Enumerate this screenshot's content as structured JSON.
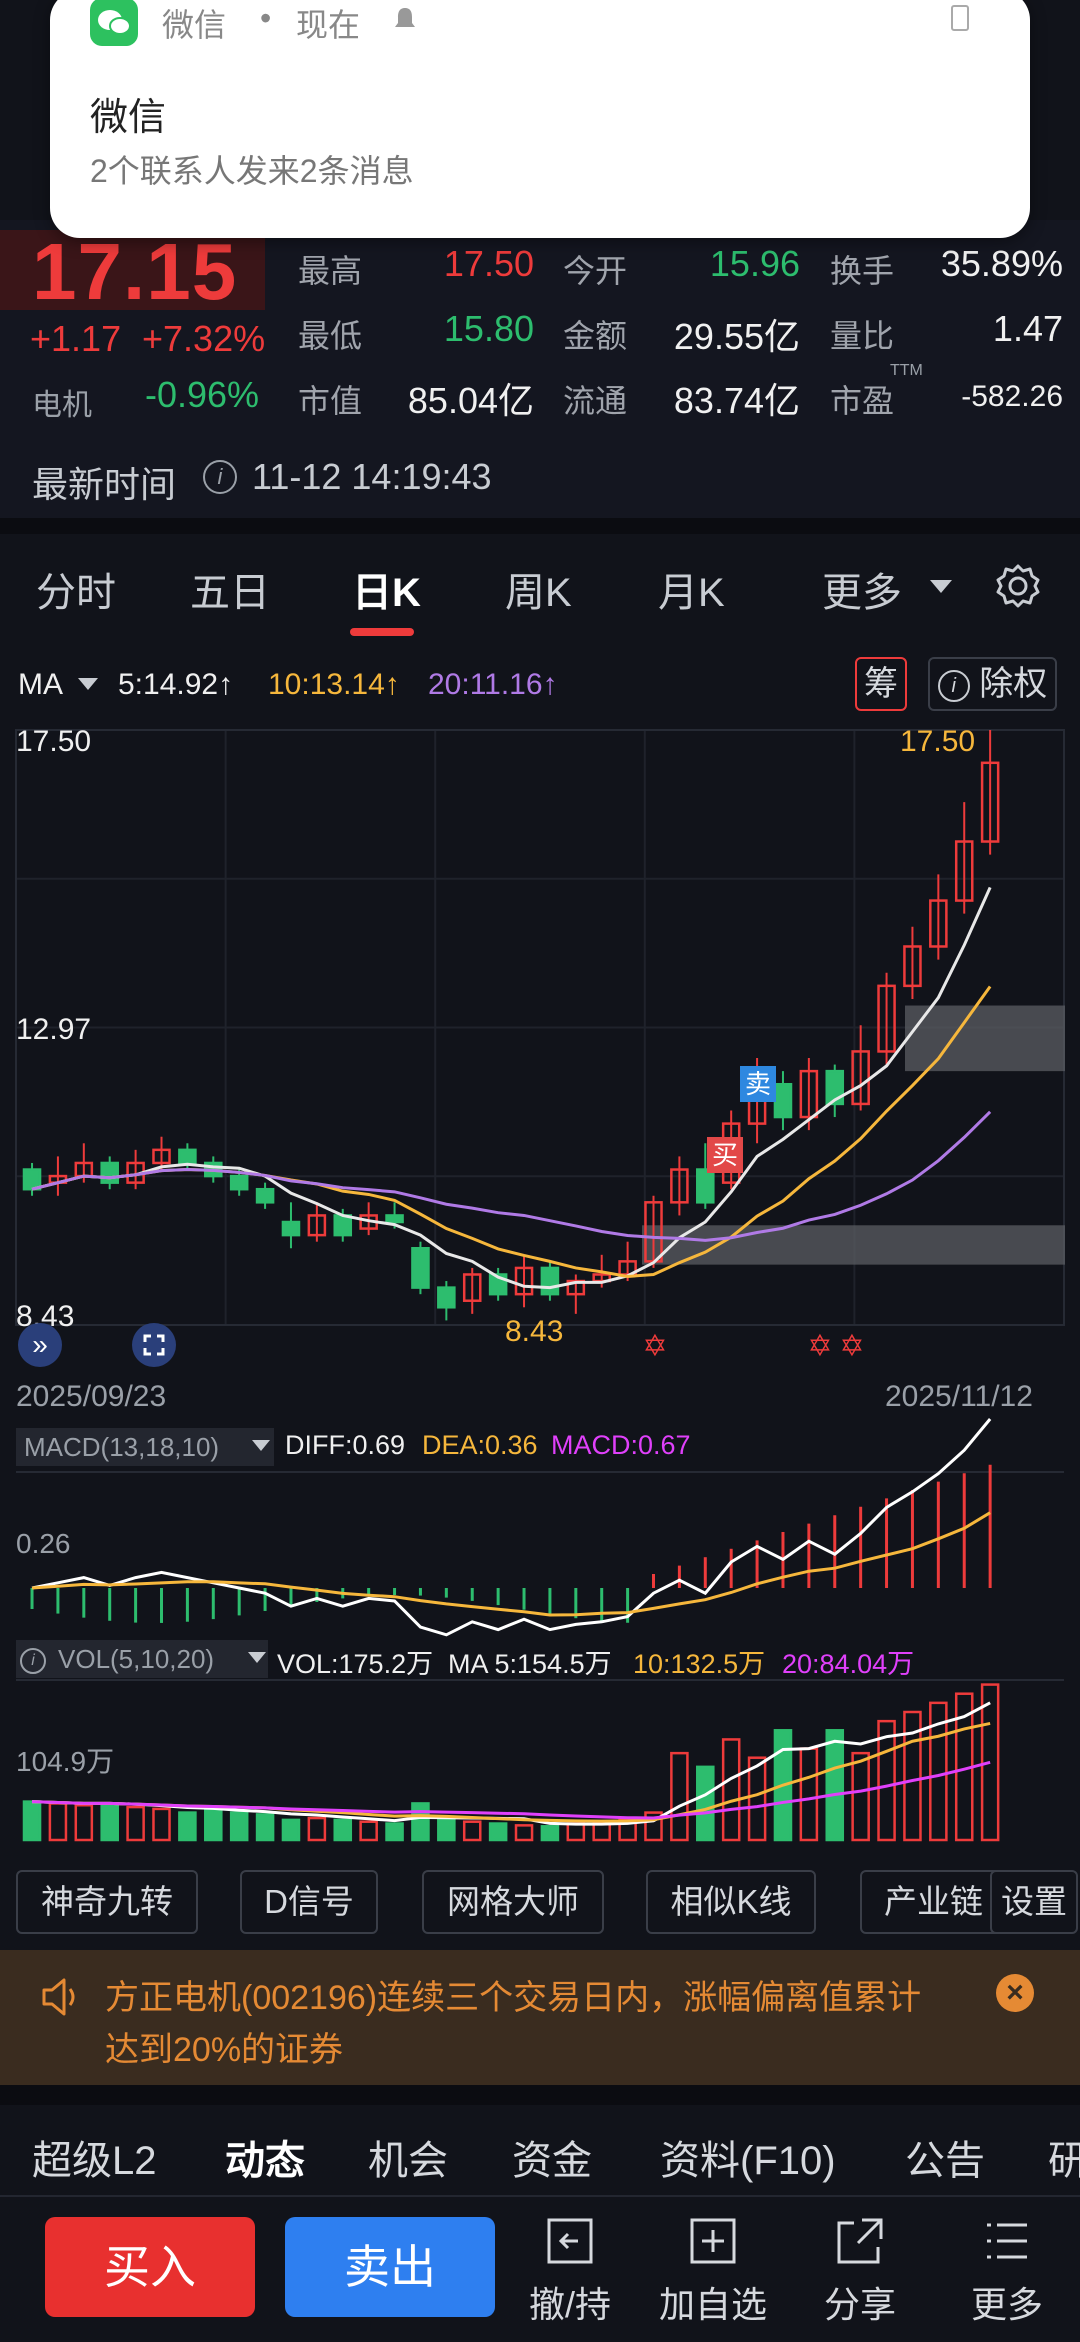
{
  "notification": {
    "app": "微信",
    "dot": "•",
    "time": "现在",
    "title": "微信",
    "body": "2个联系人发来2条消息"
  },
  "quote": {
    "price": "17.15",
    "change": "+1.17",
    "change_pct": "+7.32%",
    "sector_label": "电机",
    "sector_pct": "-0.96%",
    "high_label": "最高",
    "high": "17.50",
    "open_label": "今开",
    "open": "15.96",
    "turnover_label": "换手",
    "turnover": "35.89%",
    "low_label": "最低",
    "low": "15.80",
    "amount_label": "金额",
    "amount": "29.55亿",
    "volratio_label": "量比",
    "volratio": "1.47",
    "mcap_label": "市值",
    "mcap": "85.04亿",
    "float_label": "流通",
    "float": "83.74亿",
    "pe_label": "市盈",
    "pe_sup": "TTM",
    "pe": "-582.26",
    "time_label": "最新时间",
    "time_value": "11-12 14:19:43"
  },
  "tabs": [
    "分时",
    "五日",
    "日K",
    "周K",
    "月K",
    "更多"
  ],
  "ma": {
    "label": "MA",
    "ma5": "5:14.92↑",
    "ma10": "10:13.14↑",
    "ma20": "20:11.16↑",
    "chip_label": "筹",
    "adjust_label": "除权"
  },
  "chart_data": {
    "type": "candlestick",
    "y_ticks": [
      "17.50",
      "12.97",
      "8.43"
    ],
    "max_label": "17.50",
    "min_label": "8.43",
    "start_date": "2025/09/23",
    "end_date": "2025/11/12",
    "buy_marker": "买",
    "sell_marker": "卖",
    "candles": [
      [
        10.8,
        10.5,
        10.9,
        10.4
      ],
      [
        10.6,
        10.7,
        11.0,
        10.4
      ],
      [
        10.7,
        10.9,
        11.2,
        10.6
      ],
      [
        10.9,
        10.6,
        11.0,
        10.5
      ],
      [
        10.6,
        10.9,
        11.1,
        10.5
      ],
      [
        10.9,
        11.1,
        11.3,
        10.8
      ],
      [
        11.1,
        10.9,
        11.2,
        10.8
      ],
      [
        10.9,
        10.7,
        11.0,
        10.6
      ],
      [
        10.7,
        10.5,
        10.8,
        10.4
      ],
      [
        10.5,
        10.3,
        10.6,
        10.2
      ],
      [
        10.0,
        9.8,
        10.3,
        9.6
      ],
      [
        9.8,
        10.1,
        10.3,
        9.7
      ],
      [
        10.1,
        9.8,
        10.2,
        9.7
      ],
      [
        9.9,
        10.1,
        10.3,
        9.8
      ],
      [
        10.1,
        10.0,
        10.3,
        9.9
      ],
      [
        9.6,
        9.0,
        9.7,
        8.9
      ],
      [
        9.0,
        8.7,
        9.1,
        8.5
      ],
      [
        8.8,
        9.2,
        9.3,
        8.6
      ],
      [
        9.2,
        8.9,
        9.3,
        8.8
      ],
      [
        8.9,
        9.3,
        9.5,
        8.7
      ],
      [
        9.3,
        8.9,
        9.4,
        8.8
      ],
      [
        8.9,
        9.1,
        9.2,
        8.6
      ],
      [
        9.1,
        9.2,
        9.5,
        9.0
      ],
      [
        9.2,
        9.4,
        9.7,
        9.1
      ],
      [
        9.4,
        10.3,
        10.4,
        9.3
      ],
      [
        10.3,
        10.8,
        11.0,
        10.1
      ],
      [
        10.8,
        10.3,
        11.2,
        10.2
      ],
      [
        10.6,
        11.5,
        11.7,
        10.5
      ],
      [
        11.5,
        12.1,
        12.5,
        11.2
      ],
      [
        12.1,
        11.6,
        12.3,
        11.4
      ],
      [
        11.6,
        12.3,
        12.5,
        11.4
      ],
      [
        12.3,
        11.8,
        12.4,
        11.6
      ],
      [
        11.8,
        12.6,
        13.0,
        11.7
      ],
      [
        12.6,
        13.6,
        13.8,
        12.4
      ],
      [
        13.6,
        14.2,
        14.5,
        13.4
      ],
      [
        14.2,
        14.9,
        15.3,
        14.0
      ],
      [
        14.9,
        15.8,
        16.4,
        14.7
      ],
      [
        15.8,
        17.0,
        17.5,
        15.6
      ]
    ],
    "macd_label": "MACD(13,18,10)",
    "diff": "DIFF:0.69",
    "dea": "DEA:0.36",
    "macd": "MACD:0.67",
    "macd_tick": "0.26",
    "vol_label": "VOL(5,10,20)",
    "vol": "VOL:175.2万",
    "vol_ma5": "MA 5:154.5万",
    "vol_ma10": "10:132.5万",
    "vol_ma20": "20:84.04万",
    "vol_tick": "104.9万"
  },
  "tools": [
    "神奇九转",
    "D信号",
    "网格大师",
    "相似K线",
    "产业链",
    "设置"
  ],
  "notice": {
    "text1": "方正电机(002196)连续三个交易日内，涨幅偏离值累计",
    "text2": "达到20%的证券"
  },
  "subnav": [
    "超级L2",
    "动态",
    "机会",
    "资金",
    "资料(F10)",
    "公告",
    "研"
  ],
  "bottom": {
    "buy": "买入",
    "sell": "卖出",
    "cancel": "撤/持",
    "watch": "加自选",
    "share": "分享",
    "more": "更多"
  },
  "colors": {
    "up": "#ee3b3b",
    "down": "#2dbd6e",
    "ma5": "#e8e8e8",
    "ma10": "#f6b73c",
    "ma20": "#b07ae6",
    "accent_buy": "#e8302f",
    "accent_sell": "#2e7ff0"
  }
}
